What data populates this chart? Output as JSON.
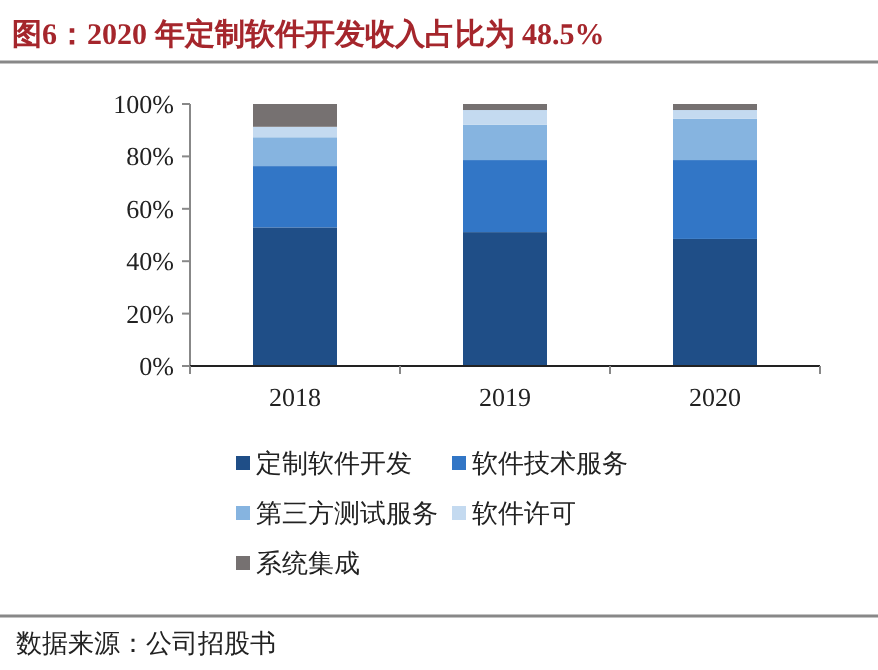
{
  "chart_data": {
    "type": "bar",
    "stacked": true,
    "title": "图6：2020 年定制软件开发收入占比为 48.5%",
    "categories": [
      "2018",
      "2019",
      "2020"
    ],
    "series": [
      {
        "name": "定制软件开发",
        "color": "#1f4e87",
        "values": [
          52.9,
          51.1,
          48.5
        ]
      },
      {
        "name": "软件技术服务",
        "color": "#3276c6",
        "values": [
          23.4,
          27.5,
          30.1
        ]
      },
      {
        "name": "第三方测试服务",
        "color": "#86b4e0",
        "values": [
          11.0,
          13.5,
          15.8
        ]
      },
      {
        "name": "软件许可",
        "color": "#c4daf0",
        "values": [
          4.0,
          5.6,
          3.3
        ]
      },
      {
        "name": "系统集成",
        "color": "#767171",
        "values": [
          8.7,
          2.3,
          2.3
        ]
      }
    ],
    "ylim": [
      0,
      100
    ],
    "yticks": [
      {
        "value": 0,
        "label": "0%"
      },
      {
        "value": 20,
        "label": "20%"
      },
      {
        "value": 40,
        "label": "40%"
      },
      {
        "value": 60,
        "label": "60%"
      },
      {
        "value": 80,
        "label": "80%"
      },
      {
        "value": 100,
        "label": "100%"
      }
    ],
    "legend": "bottom",
    "annotations": [
      "数据来源：公司招股书"
    ]
  }
}
